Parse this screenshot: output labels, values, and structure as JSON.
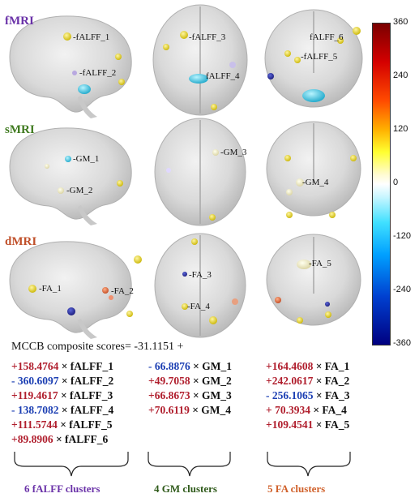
{
  "rows": [
    {
      "label": "fMRI",
      "color": "#6a32a8"
    },
    {
      "label": "sMRI",
      "color": "#3f7a1f"
    },
    {
      "label": "dMRI",
      "color": "#c0502a"
    }
  ],
  "cluster_labels": {
    "fALFF_1": "fALFF_1",
    "fALFF_2": "fALFF_2",
    "fALFF_3": "fALFF_3",
    "fALFF_4": "fALFF_4",
    "fALFF_5": "fALFF_5",
    "fALFF_6": "fALFF_6",
    "GM_1": "GM_1",
    "GM_2": "GM_2",
    "GM_3": "GM_3",
    "GM_4": "GM_4",
    "FA_1": "FA_1",
    "FA_2": "FA_2",
    "FA_3": "FA_3",
    "FA_4": "FA_4",
    "FA_5": "FA_5"
  },
  "colorbar": {
    "ticks": [
      "360",
      "240",
      "120",
      "0",
      "-120",
      "-240",
      "-360"
    ],
    "min": -360,
    "max": 360
  },
  "composite": {
    "text": "MCCB composite scores= -31.1151 +"
  },
  "times": "×",
  "equation": {
    "falff": [
      {
        "coef": "+158.4764",
        "var": "fALFF_1",
        "sign": "pos"
      },
      {
        "coef": "- 360.6097",
        "var": "fALFF_2",
        "sign": "neg"
      },
      {
        "coef": "+119.4617",
        "var": "fALFF_3",
        "sign": "pos"
      },
      {
        "coef": "- 138.7082",
        "var": "fALFF_4",
        "sign": "neg"
      },
      {
        "coef": "+111.5744",
        "var": "fALFF_5",
        "sign": "pos"
      },
      {
        "coef": "+89.8906",
        "var": "fALFF_6",
        "sign": "pos"
      }
    ],
    "gm": [
      {
        "coef": "- 66.8876",
        "var": "GM_1",
        "sign": "neg"
      },
      {
        "coef": "+49.7058",
        "var": "GM_2",
        "sign": "pos"
      },
      {
        "coef": "+66.8673",
        "var": "GM_3",
        "sign": "pos"
      },
      {
        "coef": "+70.6119",
        "var": "GM_4",
        "sign": "pos"
      }
    ],
    "fa": [
      {
        "coef": "+164.4608",
        "var": "FA_1",
        "sign": "pos"
      },
      {
        "coef": "+242.0617",
        "var": "FA_2",
        "sign": "pos"
      },
      {
        "coef": "- 256.1065",
        "var": "FA_3",
        "sign": "neg"
      },
      {
        "coef": "+ 70.3934",
        "var": "FA_4",
        "sign": "pos"
      },
      {
        "coef": "+109.4541",
        "var": "FA_5",
        "sign": "pos"
      }
    ]
  },
  "groups": [
    {
      "label": "6 fALFF clusters",
      "color": "#6a32a8"
    },
    {
      "label": "4 GM clusters",
      "color": "#2f5a1a"
    },
    {
      "label": "5 FA clusters",
      "color": "#d0602a"
    }
  ]
}
